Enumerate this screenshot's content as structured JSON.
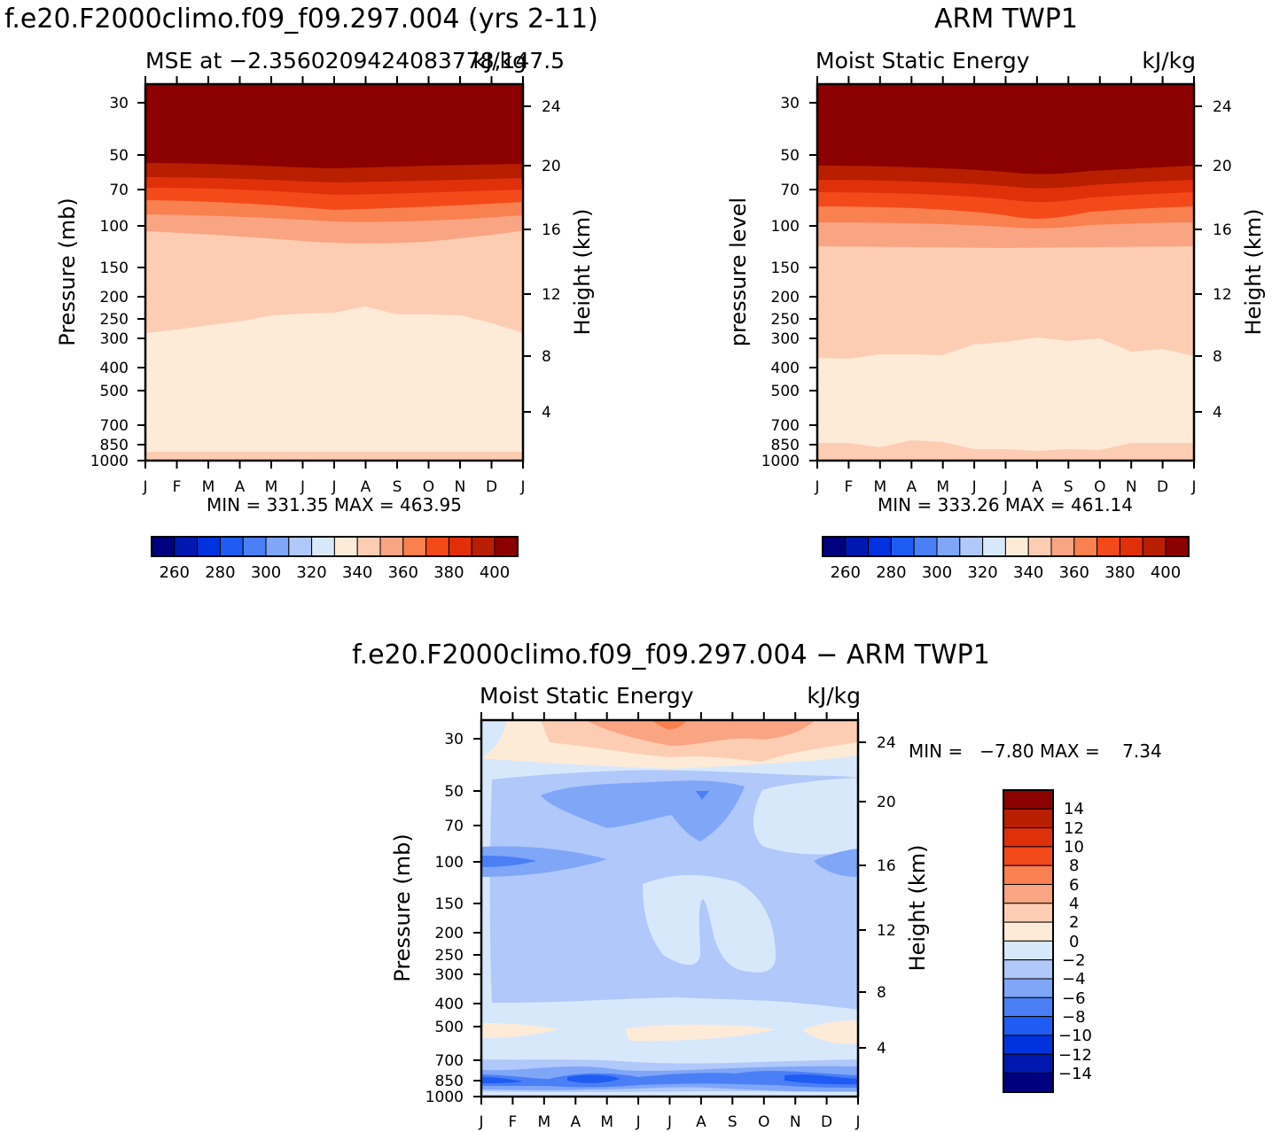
{
  "months": [
    "J",
    "F",
    "M",
    "A",
    "M",
    "J",
    "J",
    "A",
    "S",
    "O",
    "N",
    "D",
    "J"
  ],
  "pressure_ticks": [
    "30",
    "50",
    "70",
    "100",
    "150",
    "200",
    "250",
    "300",
    "400",
    "500",
    "700",
    "850",
    "1000"
  ],
  "height_ticks": [
    "24",
    "20",
    "16",
    "12",
    "8",
    "4"
  ],
  "colors": {
    "mse": [
      "#00007f",
      "#0018b0",
      "#0032e0",
      "#1e5cf4",
      "#4a7ff6",
      "#80a6f8",
      "#b0c8fa",
      "#d8e8fb",
      "#fdebd8",
      "#fdcdb3",
      "#f9a483",
      "#f9804f",
      "#f44a1a",
      "#e0300a",
      "#b81e00",
      "#8b0000"
    ],
    "diff": [
      "#00007f",
      "#0018b0",
      "#0032e0",
      "#1e5cf4",
      "#4a7ff6",
      "#80a6f8",
      "#b0c8fa",
      "#d8e8fb",
      "#fdebd8",
      "#fdcdb3",
      "#f9a483",
      "#f9804f",
      "#f44a1a",
      "#e0300a",
      "#b81e00",
      "#8b0000"
    ]
  },
  "panels": [
    {
      "id": "model",
      "title": "f.e20.F2000climo.f09_f09.297.004 (yrs 2-11)",
      "left_label": "MSE at −2.3560209424083778,147.5",
      "right_label": "kJ/kg",
      "ylabel": "Pressure (mb)",
      "ylabel2": "Height (km)",
      "stats": "MIN = 331.35 MAX = 463.95",
      "colorbar_labels": [
        "260",
        "280",
        "300",
        "320",
        "340",
        "360",
        "380",
        "400"
      ]
    },
    {
      "id": "obs",
      "title": "ARM TWP1",
      "left_label": "Moist Static Energy",
      "right_label": "kJ/kg",
      "ylabel": "pressure level",
      "ylabel2": "Height (km)",
      "stats": "MIN = 333.26 MAX = 461.14",
      "colorbar_labels": [
        "260",
        "280",
        "300",
        "320",
        "340",
        "360",
        "380",
        "400"
      ]
    },
    {
      "id": "diff",
      "title": "f.e20.F2000climo.f09_f09.297.004 − ARM TWP1",
      "left_label": "Moist Static Energy",
      "right_label": "kJ/kg",
      "ylabel": "Pressure (mb)",
      "ylabel2": "Height (km)",
      "stats": "MIN =   −7.80 MAX =    7.34",
      "colorbar_labels": [
        "14",
        "12",
        "10",
        "8",
        "6",
        "4",
        "2",
        "0",
        "−2",
        "−4",
        "−6",
        "−8",
        "−10",
        "−12",
        "−14"
      ]
    }
  ],
  "chart_data": [
    {
      "type": "heatmap",
      "panel": "model",
      "x": [
        "J",
        "F",
        "M",
        "A",
        "M",
        "J",
        "J",
        "A",
        "S",
        "O",
        "N",
        "D",
        "J"
      ],
      "y_pressure_mb": [
        1000,
        850,
        700,
        500,
        400,
        300,
        250,
        200,
        150,
        100,
        70,
        50,
        30
      ],
      "contour_levels": [
        260,
        270,
        280,
        290,
        300,
        310,
        320,
        330,
        340,
        350,
        360,
        370,
        380,
        390,
        400
      ],
      "level_boundaries_mb": {
        "330": [
          940,
          940,
          940,
          940,
          940,
          940,
          940,
          940,
          940,
          940,
          940,
          940,
          940
        ],
        "340": [
          290,
          280,
          265,
          255,
          240,
          237,
          236,
          222,
          238,
          238,
          250,
          270,
          290
        ],
        "350": [
          110,
          113,
          116,
          118,
          121,
          123,
          125,
          125,
          124,
          122,
          118,
          115,
          110
        ],
        "360": [
          93,
          93,
          93,
          94,
          97,
          100,
          101,
          101,
          101,
          99,
          96,
          93,
          92
        ],
        "370": [
          79,
          79,
          79,
          79,
          81,
          82,
          83,
          83,
          83,
          82,
          80,
          79,
          78
        ],
        "380": [
          68,
          68,
          68,
          68,
          69,
          70,
          71,
          71,
          71,
          70,
          69,
          68,
          67
        ],
        "390": [
          59,
          59,
          59,
          59,
          60,
          61,
          61,
          61,
          61,
          61,
          60,
          59,
          58
        ],
        "400": [
          53,
          53,
          53,
          53,
          54,
          55,
          55,
          54,
          54,
          54,
          54,
          53,
          53
        ]
      },
      "stats": "MIN = 331.35 MAX = 463.95"
    },
    {
      "type": "heatmap",
      "panel": "obs",
      "x": [
        "J",
        "F",
        "M",
        "A",
        "M",
        "J",
        "J",
        "A",
        "S",
        "O",
        "N",
        "D",
        "J"
      ],
      "y_pressure_mb": [
        1000,
        850,
        700,
        500,
        400,
        300,
        250,
        200,
        150,
        100,
        70,
        50,
        30
      ],
      "contour_levels": [
        260,
        270,
        280,
        290,
        300,
        310,
        320,
        330,
        340,
        350,
        360,
        370,
        380,
        390,
        400
      ],
      "level_boundaries_mb": {
        "330": [
          1000,
          1000,
          1000,
          1000,
          1000,
          990,
          990,
          990,
          1000,
          1000,
          1000,
          1000,
          1000
        ],
        "340": [
          860,
          860,
          880,
          840,
          850,
          890,
          890,
          885,
          885,
          885,
          850,
          850,
          850
        ],
        "350": [
          375,
          378,
          365,
          364,
          368,
          335,
          325,
          310,
          325,
          320,
          360,
          355,
          375
        ],
        "360": [
          123,
          123,
          123,
          123,
          123,
          124,
          124,
          124,
          124,
          123,
          123,
          123,
          123
        ],
        "370": [
          99,
          99,
          99,
          99,
          101,
          102,
          104,
          107,
          104,
          102,
          100,
          99,
          99
        ],
        "380": [
          85,
          85,
          85,
          85,
          86,
          87,
          88,
          90,
          89,
          87,
          86,
          85,
          85
        ],
        "390": [
          72,
          72,
          72,
          73,
          74,
          75,
          76,
          77,
          76,
          75,
          73,
          72,
          72
        ],
        "400": [
          61,
          61,
          61,
          61,
          62,
          63,
          64,
          65,
          64,
          63,
          62,
          61,
          61
        ]
      },
      "stats": "MIN = 333.26 MAX = 461.14"
    },
    {
      "type": "heatmap",
      "panel": "diff",
      "x": [
        "J",
        "F",
        "M",
        "A",
        "M",
        "J",
        "J",
        "A",
        "S",
        "O",
        "N",
        "D",
        "J"
      ],
      "y_pressure_mb": [
        1000,
        850,
        700,
        500,
        400,
        300,
        250,
        200,
        150,
        100,
        70,
        50,
        30
      ],
      "contour_levels": [
        -14,
        -12,
        -10,
        -8,
        -6,
        -4,
        -2,
        0,
        2,
        4,
        6,
        8,
        10,
        12,
        14
      ],
      "stats": "MIN = -7.80 MAX = 7.34",
      "note": "Difference field: mostly -2 to -4 kJ/kg in the mid troposphere, -4 to -6 near 50-70 mb and 850 mb, small positive values near 30 mb and ~550 mb."
    }
  ]
}
